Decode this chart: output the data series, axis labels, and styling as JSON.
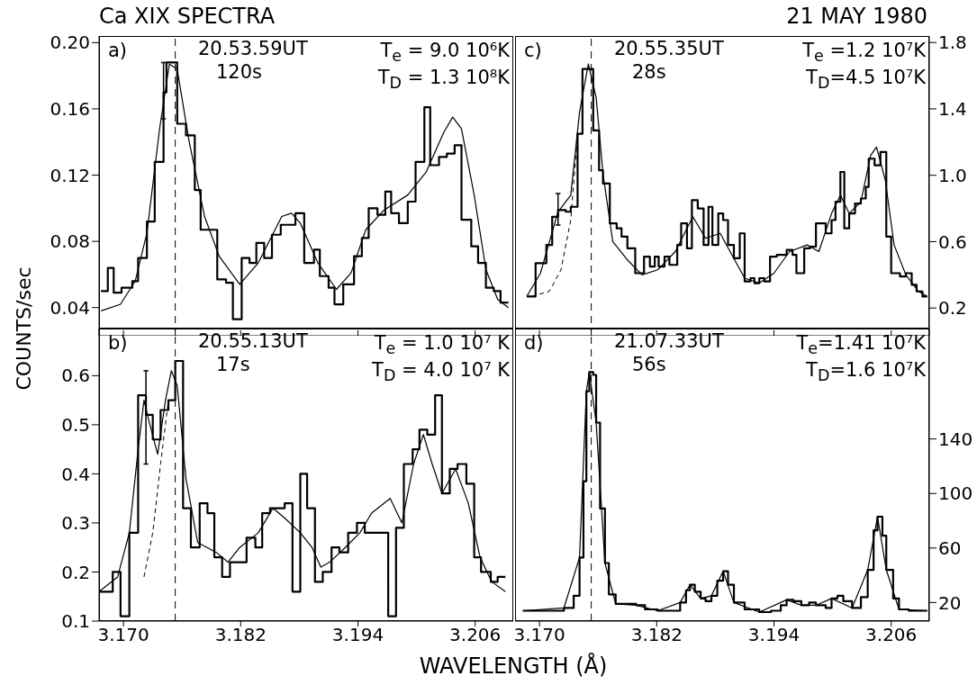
{
  "chart_data": [
    {
      "type": "step",
      "title": "Ca XIX SPECTRA",
      "ylabel": "COUNTS/sec",
      "tick_labels": "y",
      "xlim": [
        3.1675,
        3.2099
      ],
      "xticks": [
        3.17,
        3.182,
        3.194,
        3.206
      ],
      "ylim": [
        0.023,
        0.204
      ],
      "yticks": [
        0.04,
        0.08,
        0.12,
        0.16,
        {
          "value": 0.2,
          "label": "0.20"
        }
      ],
      "annotations": [
        "a)",
        "20.53.59UT",
        "120s",
        "T$_{e}$ = 9.0 10⁶K",
        "T$_{D}$ = 1.3 10⁸K"
      ],
      "ref_lines": [
        {
          "axis": "x",
          "value": 3.1753,
          "line_style": "dashed"
        }
      ],
      "series": [
        {
          "color": "#000000",
          "x": [
            3.1677,
            3.1684,
            3.169,
            3.1698,
            3.1709,
            3.1715,
            3.1724,
            3.1732,
            3.1741,
            3.1744,
            3.1755,
            3.1764,
            3.1773,
            3.1779,
            3.1796,
            3.1805,
            3.1812,
            3.1821,
            3.1829,
            3.1836,
            3.1844,
            3.1852,
            3.1861,
            3.1876,
            3.1885,
            3.1895,
            3.1901,
            3.191,
            3.1916,
            3.1925,
            3.1936,
            3.1944,
            3.1951,
            3.196,
            3.1968,
            3.1974,
            3.1982,
            3.1991,
            3.1999,
            3.2008,
            3.2014,
            3.2023,
            3.2031,
            3.2039,
            3.2046,
            3.2056,
            3.2063,
            3.2071,
            3.2079,
            3.2086,
            3.2094
          ],
          "values": [
            0.05,
            0.064,
            0.049,
            0.052,
            0.056,
            0.07,
            0.092,
            0.128,
            0.17,
            0.188,
            0.151,
            0.144,
            0.111,
            0.087,
            0.057,
            0.055,
            0.033,
            0.07,
            0.067,
            0.079,
            0.07,
            0.084,
            0.09,
            0.097,
            0.067,
            0.075,
            0.059,
            0.052,
            0.042,
            0.054,
            0.071,
            0.082,
            0.1,
            0.096,
            0.11,
            0.097,
            0.091,
            0.104,
            0.128,
            0.161,
            0.126,
            0.131,
            0.133,
            0.138,
            0.093,
            0.077,
            0.067,
            0.052,
            0.05,
            0.043,
            0.043
          ],
          "errors": [
            null,
            null,
            null,
            null,
            null,
            null,
            null,
            null,
            [
              0.154,
              0.188
            ],
            null,
            null,
            null,
            null,
            null,
            null,
            null,
            null,
            null,
            null,
            null,
            null,
            null,
            null,
            null,
            null,
            null,
            null,
            null,
            null,
            null,
            null,
            null,
            null,
            null,
            null,
            null,
            null,
            null,
            null,
            null,
            null,
            null,
            null,
            null,
            null,
            null,
            null,
            null,
            null,
            null,
            null
          ]
        },
        {
          "type": "line",
          "color": "#000000",
          "x": [
            3.1677,
            3.1697,
            3.1712,
            3.1724,
            3.1737,
            3.1747,
            3.1755,
            3.1767,
            3.1783,
            3.1798,
            3.1819,
            3.1838,
            3.1862,
            3.1872,
            3.1881,
            3.1899,
            3.1918,
            3.1933,
            3.1948,
            3.1967,
            3.1991,
            3.201,
            3.2028,
            3.2037,
            3.2046,
            3.2059,
            3.2071,
            3.2083,
            3.2094
          ],
          "values": [
            0.038,
            0.042,
            0.056,
            0.085,
            0.148,
            0.187,
            0.184,
            0.141,
            0.095,
            0.071,
            0.054,
            0.067,
            0.095,
            0.097,
            0.091,
            0.067,
            0.051,
            0.061,
            0.087,
            0.099,
            0.108,
            0.122,
            0.146,
            0.155,
            0.148,
            0.108,
            0.063,
            0.045,
            0.04
          ]
        }
      ]
    },
    {
      "type": "step",
      "title": "21 MAY 1980",
      "tick_labels": "y",
      "xlim": [
        3.1675,
        3.2099
      ],
      "xticks": [
        3.17,
        3.182,
        3.194,
        3.206
      ],
      "ylim": [
        0.033,
        1.839
      ],
      "yticks": [
        0.2,
        0.6,
        {
          "value": 1,
          "label": "1.0"
        },
        1.4,
        1.8
      ],
      "annotations": [
        "c)",
        "20.55.35UT",
        "28s",
        "T$_{e}$ =1.2  10⁷K",
        "T$_{D}$=4.5  10⁷K"
      ],
      "ref_lines": [
        {
          "axis": "x",
          "value": 3.1753,
          "line_style": "dashed"
        }
      ],
      "series": [
        {
          "color": "#000000",
          "x": [
            3.1687,
            3.1696,
            3.1707,
            3.1713,
            3.1719,
            3.1727,
            3.1732,
            3.1739,
            3.1744,
            3.1755,
            3.1761,
            3.1765,
            3.1772,
            3.1779,
            3.1784,
            3.179,
            3.1798,
            3.1807,
            3.1813,
            3.1818,
            3.1822,
            3.1828,
            3.1833,
            3.1841,
            3.1845,
            3.1851,
            3.1856,
            3.1862,
            3.1868,
            3.1873,
            3.1877,
            3.1883,
            3.1888,
            3.1893,
            3.1899,
            3.1905,
            3.191,
            3.1916,
            3.192,
            3.1925,
            3.193,
            3.1936,
            3.1943,
            3.1953,
            3.1959,
            3.1963,
            3.1971,
            3.1977,
            3.1983,
            3.1993,
            3.1999,
            3.2003,
            3.2008,
            3.2012,
            3.2017,
            3.2023,
            3.2029,
            3.2034,
            3.2037,
            3.2043,
            3.2049,
            3.2055,
            3.206,
            3.2069,
            3.2075,
            3.2081,
            3.2086,
            3.2092,
            3.2097
          ],
          "values": [
            0.27,
            0.47,
            0.58,
            0.75,
            0.79,
            0.78,
            0.81,
            1.25,
            1.64,
            1.27,
            1.03,
            0.95,
            0.71,
            0.68,
            0.63,
            0.56,
            0.41,
            0.51,
            0.45,
            0.51,
            0.45,
            0.51,
            0.46,
            0.58,
            0.71,
            0.56,
            0.85,
            0.8,
            0.58,
            0.81,
            0.58,
            0.77,
            0.73,
            0.58,
            0.5,
            0.65,
            0.36,
            0.38,
            0.35,
            0.38,
            0.36,
            0.51,
            0.52,
            0.55,
            0.52,
            0.41,
            0.56,
            0.57,
            0.71,
            0.65,
            0.73,
            0.84,
            1.02,
            0.68,
            0.77,
            0.83,
            0.86,
            0.93,
            1.1,
            1.06,
            1.14,
            0.63,
            0.41,
            0.39,
            0.41,
            0.34,
            0.3,
            0.27,
            0.27
          ],
          "errors": [
            null,
            null,
            null,
            null,
            [
              0.7,
              0.89
            ],
            null,
            null,
            null,
            null,
            null,
            null,
            null,
            null,
            null,
            null,
            null,
            null,
            null,
            null,
            null,
            null,
            null,
            null,
            null,
            null,
            null,
            null,
            null,
            null,
            null,
            null,
            null,
            null,
            null,
            null,
            null,
            null,
            null,
            null,
            null,
            null,
            null,
            null,
            null,
            null,
            null,
            null,
            null,
            null,
            null,
            null,
            null,
            null,
            null,
            null,
            null,
            null,
            null,
            null,
            null,
            null,
            null,
            null,
            null,
            null,
            null,
            null,
            null,
            null
          ]
        },
        {
          "type": "line",
          "color": "#000000",
          "x": [
            3.1687,
            3.1701,
            3.1719,
            3.1732,
            3.1741,
            3.175,
            3.1758,
            3.1765,
            3.1775,
            3.179,
            3.1805,
            3.1821,
            3.1839,
            3.1857,
            3.187,
            3.1885,
            3.1897,
            3.191,
            3.1925,
            3.194,
            3.1956,
            3.1974,
            3.1986,
            3.1999,
            3.2008,
            3.2017,
            3.2029,
            3.2039,
            3.2045,
            3.2054,
            3.2063,
            3.2075,
            3.2088,
            3.2097
          ],
          "values": [
            0.27,
            0.41,
            0.78,
            0.88,
            1.38,
            1.67,
            1.47,
            1.01,
            0.6,
            0.49,
            0.4,
            0.43,
            0.54,
            0.75,
            0.62,
            0.65,
            0.52,
            0.38,
            0.35,
            0.41,
            0.54,
            0.58,
            0.54,
            0.77,
            0.88,
            0.77,
            0.84,
            1.12,
            1.17,
            0.97,
            0.58,
            0.4,
            0.3,
            0.27
          ]
        },
        {
          "type": "line",
          "color": "#000000",
          "line_style": "dashed",
          "x": [
            3.1692,
            3.171,
            3.1722,
            3.1732,
            3.1739
          ],
          "values": [
            0.27,
            0.3,
            0.43,
            0.73,
            1.25
          ]
        }
      ]
    },
    {
      "type": "step",
      "xlabel": "WAVELENGTH (Å)",
      "xlim": [
        3.1675,
        3.2099
      ],
      "xticks": [
        {
          "value": 3.17,
          "label": "3.170"
        },
        3.182,
        3.194,
        3.206
      ],
      "ylim": [
        0.1,
        0.696
      ],
      "yticks": [
        0.1,
        0.2,
        0.3,
        0.4,
        0.5,
        0.6
      ],
      "annotations": [
        "b)",
        "20.55.13UT",
        "17s",
        "T$_{e}$ = 1.0  10⁷ K",
        "T$_{D}$ = 4.0  10⁷ K"
      ],
      "ref_lines": [
        {
          "axis": "x",
          "value": 3.1753,
          "line_style": "dashed"
        }
      ],
      "series": [
        {
          "color": "#000000",
          "x": [
            3.1675,
            3.1689,
            3.1697,
            3.1706,
            3.1715,
            3.1723,
            3.173,
            3.1738,
            3.1746,
            3.1753,
            3.1761,
            3.1769,
            3.1778,
            3.1786,
            3.1793,
            3.1801,
            3.1809,
            3.1826,
            3.1835,
            3.1842,
            3.185,
            3.1858,
            3.1865,
            3.1873,
            3.1881,
            3.1888,
            3.1896,
            3.1904,
            3.1913,
            3.1921,
            3.193,
            3.1939,
            3.1947,
            3.1971,
            3.1979,
            3.1987,
            3.1996,
            3.2003,
            3.2011,
            3.2019,
            3.2026,
            3.2034,
            3.2042,
            3.2051,
            3.2059,
            3.2066,
            3.2076,
            3.2083,
            3.2091
          ],
          "values": [
            0.16,
            0.2,
            0.11,
            0.28,
            0.56,
            0.52,
            0.47,
            0.53,
            0.55,
            0.63,
            0.33,
            0.25,
            0.34,
            0.32,
            0.23,
            0.19,
            0.22,
            0.27,
            0.25,
            0.32,
            0.33,
            0.33,
            0.34,
            0.16,
            0.4,
            0.33,
            0.18,
            0.2,
            0.25,
            0.24,
            0.28,
            0.3,
            0.28,
            0.11,
            0.29,
            0.42,
            0.45,
            0.49,
            0.48,
            0.56,
            0.36,
            0.41,
            0.42,
            0.38,
            0.23,
            0.2,
            0.18,
            0.19,
            0.19
          ],
          "errors": [
            null,
            null,
            null,
            null,
            null,
            [
              0.42,
              0.61
            ],
            null,
            null,
            null,
            null,
            null,
            null,
            null,
            null,
            null,
            null,
            null,
            null,
            null,
            null,
            null,
            null,
            null,
            null,
            null,
            null,
            null,
            null,
            null,
            null,
            null,
            null,
            null,
            null,
            null,
            null,
            null,
            null,
            null,
            null,
            null,
            null,
            null,
            null,
            null,
            null,
            null,
            null,
            null
          ]
        },
        {
          "type": "line",
          "color": "#000000",
          "x": [
            3.1675,
            3.1694,
            3.1706,
            3.1715,
            3.1721,
            3.1727,
            3.1735,
            3.1743,
            3.1749,
            3.1755,
            3.1764,
            3.1776,
            3.1795,
            3.1807,
            3.1819,
            3.1838,
            3.1853,
            3.1865,
            3.1881,
            3.1893,
            3.1902,
            3.1911,
            3.1927,
            3.1942,
            3.1954,
            3.1973,
            3.1985,
            3.1997,
            3.2007,
            3.2016,
            3.2026,
            3.204,
            3.2053,
            3.2065,
            3.2077,
            3.2091
          ],
          "values": [
            0.16,
            0.19,
            0.28,
            0.45,
            0.55,
            0.5,
            0.44,
            0.55,
            0.61,
            0.58,
            0.39,
            0.26,
            0.24,
            0.22,
            0.25,
            0.28,
            0.33,
            0.31,
            0.28,
            0.25,
            0.21,
            0.22,
            0.25,
            0.28,
            0.32,
            0.35,
            0.3,
            0.42,
            0.48,
            0.42,
            0.36,
            0.41,
            0.34,
            0.23,
            0.18,
            0.16
          ]
        },
        {
          "type": "line",
          "color": "#000000",
          "line_style": "dashed",
          "x": [
            3.1721,
            3.173,
            3.1738,
            3.1746
          ],
          "values": [
            0.19,
            0.28,
            0.42,
            0.55
          ]
        }
      ]
    },
    {
      "type": "step",
      "xlim": [
        3.1675,
        3.2099
      ],
      "xticks": [
        {
          "value": 3.17,
          "label": "3.170"
        },
        3.182,
        3.194,
        3.206
      ],
      "ylim": [
        6.4,
        221
      ],
      "yticks": [
        20,
        60,
        100,
        140
      ],
      "annotations": [
        "d)",
        "21.07.33UT",
        "56s",
        "T$_{e}$=1.41  10⁷K",
        "T$_{D}$=1.6   10⁷K"
      ],
      "ref_lines": [
        {
          "axis": "x",
          "value": 3.1753,
          "line_style": "dashed"
        }
      ],
      "series": [
        {
          "color": "#000000",
          "x": [
            3.1683,
            3.1713,
            3.1725,
            3.1735,
            3.1741,
            3.1745,
            3.1748,
            3.1751,
            3.1755,
            3.1758,
            3.1762,
            3.1767,
            3.1771,
            3.1778,
            3.179,
            3.1799,
            3.1808,
            3.1821,
            3.1833,
            3.1844,
            3.185,
            3.1854,
            3.1859,
            3.1865,
            3.187,
            3.1876,
            3.1882,
            3.1888,
            3.1893,
            3.1899,
            3.191,
            3.1925,
            3.1937,
            3.1947,
            3.1953,
            3.196,
            3.1968,
            3.1976,
            3.1983,
            3.1993,
            3.1999,
            3.2005,
            3.2011,
            3.202,
            3.2029,
            3.2036,
            3.2042,
            3.2046,
            3.2051,
            3.2055,
            3.2062,
            3.2068,
            3.2078,
            3.2097
          ],
          "values": [
            14,
            14,
            16,
            25,
            53,
            109,
            175,
            189,
            187,
            152,
            89,
            49,
            26,
            19,
            19,
            18,
            15,
            14,
            14,
            20,
            29,
            33,
            28,
            23,
            21,
            25,
            36,
            43,
            33,
            20,
            15,
            13,
            14,
            18,
            22,
            21,
            18,
            20,
            18,
            16,
            23,
            25,
            21,
            16,
            24,
            44,
            73,
            83,
            69,
            44,
            23,
            15,
            14,
            14
          ]
        },
        {
          "type": "line",
          "color": "#000000",
          "x": [
            3.1683,
            3.1725,
            3.1741,
            3.1748,
            3.1751,
            3.1758,
            3.1767,
            3.1778,
            3.1799,
            3.1821,
            3.1844,
            3.1854,
            3.1865,
            3.1876,
            3.1888,
            3.1899,
            3.1925,
            3.1953,
            3.1968,
            3.1983,
            3.1999,
            3.202,
            3.2036,
            3.2046,
            3.2055,
            3.2068,
            3.2097
          ],
          "values": [
            14,
            16,
            53,
            175,
            189,
            152,
            49,
            19,
            18,
            14,
            20,
            33,
            23,
            25,
            43,
            20,
            13,
            22,
            18,
            18,
            23,
            16,
            44,
            83,
            44,
            15,
            14
          ]
        }
      ]
    }
  ]
}
